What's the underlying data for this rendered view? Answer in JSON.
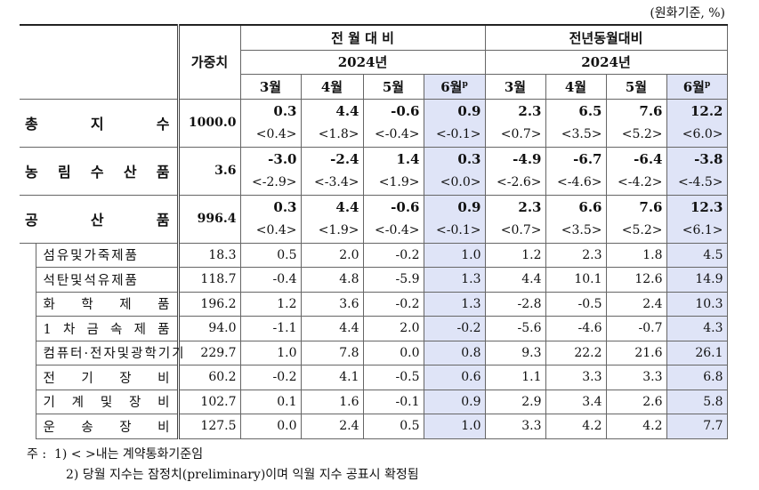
{
  "unit_note": "(원화기준, %)",
  "table": {
    "header": {
      "weight": "가중치",
      "preliminary_mark": "p",
      "groups": [
        {
          "title": "전 월 대 비",
          "year": "2024년",
          "months": [
            "3월",
            "4월",
            "5월",
            "6월"
          ]
        },
        {
          "title": "전년동월대비",
          "year": "2024년",
          "months": [
            "3월",
            "4월",
            "5월",
            "6월"
          ]
        }
      ]
    },
    "main_rows": [
      {
        "label": "총 지 수",
        "weight": "1000.0",
        "values": [
          "0.3",
          "4.4",
          "-0.6",
          "0.9",
          "2.3",
          "6.5",
          "7.6",
          "12.2"
        ],
        "contributions": [
          "<0.4>",
          "<1.8>",
          "<-0.4>",
          "<-0.1>",
          "<0.7>",
          "<3.5>",
          "<5.2>",
          "<6.0>"
        ]
      },
      {
        "label": "농 림 수 산 품",
        "weight": "3.6",
        "values": [
          "-3.0",
          "-2.4",
          "1.4",
          "0.3",
          "-4.9",
          "-6.7",
          "-6.4",
          "-3.8"
        ],
        "contributions": [
          "<-2.9>",
          "<-3.4>",
          "<1.9>",
          "<0.0>",
          "<-2.6>",
          "<-4.6>",
          "<-4.2>",
          "<-4.5>"
        ]
      },
      {
        "label": "공 산 품",
        "weight": "996.4",
        "values": [
          "0.3",
          "4.4",
          "-0.6",
          "0.9",
          "2.3",
          "6.6",
          "7.6",
          "12.3"
        ],
        "contributions": [
          "<0.4>",
          "<1.9>",
          "<-0.4>",
          "<-0.1>",
          "<0.7>",
          "<3.5>",
          "<5.2>",
          "<6.1>"
        ]
      }
    ],
    "sub_rows": [
      {
        "label": "섬유및가죽제품",
        "weight": "18.3",
        "values": [
          "0.5",
          "2.0",
          "-0.2",
          "1.0",
          "1.2",
          "2.3",
          "1.8",
          "4.5"
        ]
      },
      {
        "label": "석탄및석유제품",
        "weight": "118.7",
        "values": [
          "-0.4",
          "4.8",
          "-5.9",
          "1.3",
          "4.4",
          "10.1",
          "12.6",
          "14.9"
        ]
      },
      {
        "label": "화 학 제 품",
        "weight": "196.2",
        "values": [
          "1.2",
          "3.6",
          "-0.2",
          "1.3",
          "-2.8",
          "-0.5",
          "2.4",
          "10.3"
        ]
      },
      {
        "label": "1 차 금 속 제 품",
        "weight": "94.0",
        "values": [
          "-1.1",
          "4.4",
          "2.0",
          "-0.2",
          "-5.6",
          "-4.6",
          "-0.7",
          "4.3"
        ]
      },
      {
        "label": "컴퓨터·전자및광학기기",
        "weight": "229.7",
        "values": [
          "1.0",
          "7.8",
          "0.0",
          "0.8",
          "9.3",
          "22.2",
          "21.6",
          "26.1"
        ]
      },
      {
        "label": "전 기 장 비",
        "weight": "60.2",
        "values": [
          "-0.2",
          "4.1",
          "-0.5",
          "0.6",
          "1.1",
          "3.3",
          "3.3",
          "6.8"
        ]
      },
      {
        "label": "기 계 및 장 비",
        "weight": "102.7",
        "values": [
          "0.1",
          "1.6",
          "-0.1",
          "0.9",
          "2.9",
          "3.4",
          "2.6",
          "5.8"
        ]
      },
      {
        "label": "운 송 장 비",
        "weight": "127.5",
        "values": [
          "0.0",
          "2.4",
          "0.5",
          "1.0",
          "3.3",
          "4.2",
          "4.2",
          "7.7"
        ]
      }
    ]
  },
  "notes": {
    "marker": "주 :",
    "items": [
      "1) < >내는 계약통화기준임",
      "2) 당월 지수는 잠정치(preliminary)이며 익월 지수 공표시 확정됨"
    ]
  }
}
